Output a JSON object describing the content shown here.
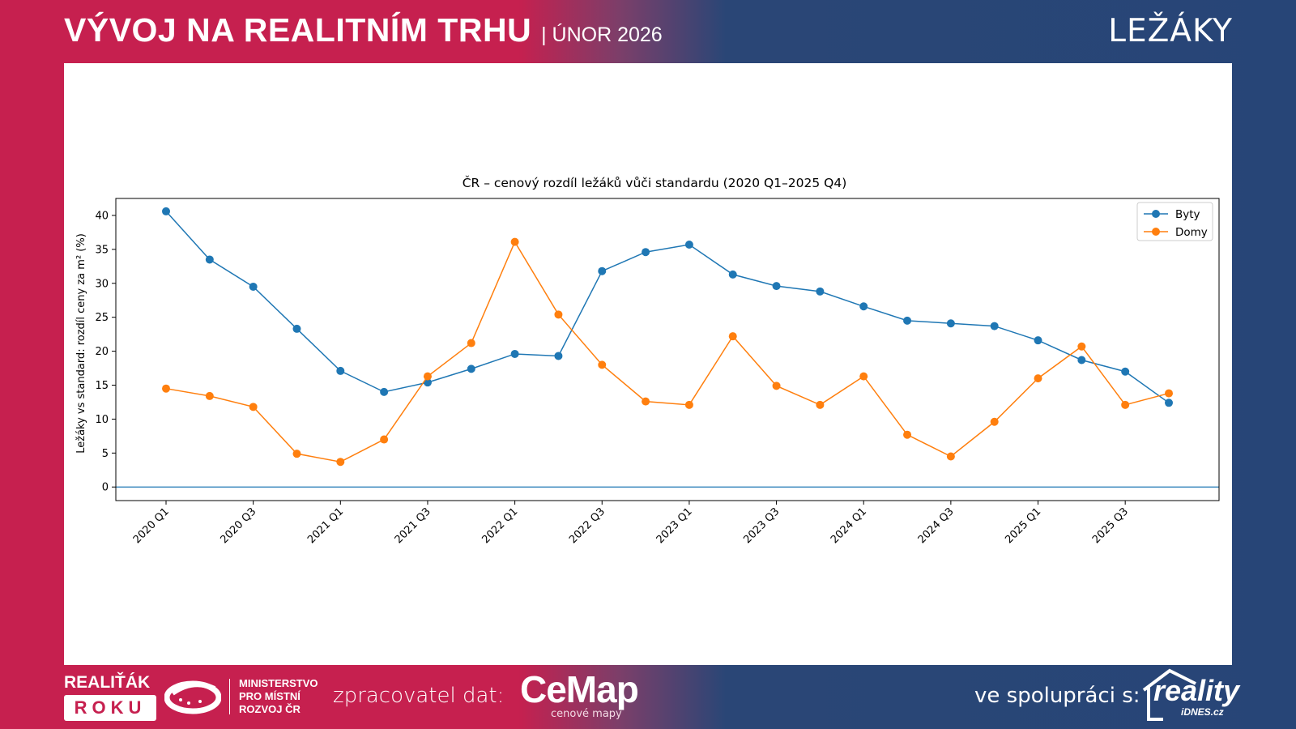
{
  "header": {
    "title": "VÝVOJ NA REALITNÍM TRHU",
    "subtitle": "| ÚNOR 2026",
    "section": "LEŽÁKY"
  },
  "footer": {
    "realitak_line1": "REALIŤÁK",
    "realitak_line2": "ROKU",
    "ministry_line1": "MINISTERSTVO",
    "ministry_line2": "PRO MÍSTNÍ",
    "ministry_line3": "ROZVOJ ČR",
    "processor_label": "zpracovatel dat:",
    "cemap_logo": "CeMap",
    "cemap_sub": "cenové mapy",
    "cooperation_label": "ve spolupráci s:",
    "reality_logo": "reality",
    "reality_sub": "iDNES.cz"
  },
  "colors": {
    "brand_red": "#c6204f",
    "brand_blue": "#274577",
    "series_byty": "#1f77b4",
    "series_domy": "#ff7f0e"
  },
  "chart_data": {
    "type": "line",
    "title": "ČR – cenový rozdíl ležáků vůči standardu (2020 Q1–2025 Q4)",
    "xlabel": "",
    "ylabel": "Ležáky vs standard: rozdíl ceny za m² (%)",
    "ylim": [
      -2,
      42.5
    ],
    "yticks": [
      0,
      5,
      10,
      15,
      20,
      25,
      30,
      35,
      40
    ],
    "grid": false,
    "legend_position": "top-right",
    "reference_line": 0,
    "x": [
      "2020 Q1",
      "2020 Q2",
      "2020 Q3",
      "2020 Q4",
      "2021 Q1",
      "2021 Q2",
      "2021 Q3",
      "2021 Q4",
      "2022 Q1",
      "2022 Q2",
      "2022 Q3",
      "2022 Q4",
      "2023 Q1",
      "2023 Q2",
      "2023 Q3",
      "2023 Q4",
      "2024 Q1",
      "2024 Q2",
      "2024 Q3",
      "2024 Q4",
      "2025 Q1",
      "2025 Q2",
      "2025 Q3",
      "2025 Q4"
    ],
    "xtick_labels": [
      "2020 Q1",
      "2020 Q3",
      "2021 Q1",
      "2021 Q3",
      "2022 Q1",
      "2022 Q3",
      "2023 Q1",
      "2023 Q3",
      "2024 Q1",
      "2024 Q3",
      "2025 Q1",
      "2025 Q3"
    ],
    "series": [
      {
        "name": "Byty",
        "color": "#1f77b4",
        "values": [
          40.6,
          33.5,
          29.5,
          23.3,
          17.1,
          14.0,
          15.4,
          17.4,
          19.6,
          19.3,
          31.8,
          34.6,
          35.7,
          31.3,
          29.6,
          28.8,
          26.6,
          24.5,
          24.1,
          23.7,
          21.6,
          18.7,
          17.0,
          12.4
        ]
      },
      {
        "name": "Domy",
        "color": "#ff7f0e",
        "values": [
          14.5,
          13.4,
          11.8,
          4.9,
          3.7,
          7.0,
          16.3,
          21.2,
          36.1,
          25.4,
          18.0,
          12.6,
          12.1,
          22.2,
          14.9,
          12.1,
          16.3,
          7.7,
          4.5,
          9.6,
          16.0,
          20.7,
          12.1,
          13.8
        ]
      }
    ]
  }
}
